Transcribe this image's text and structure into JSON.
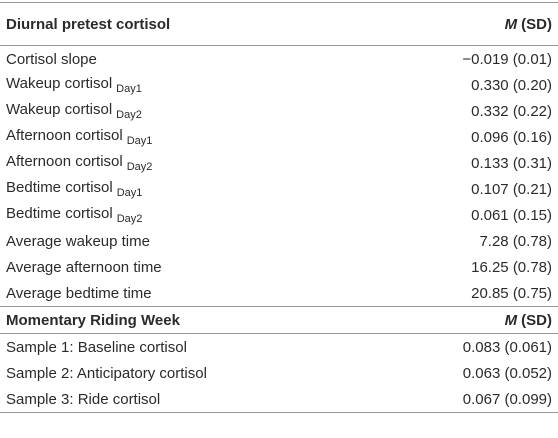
{
  "header": {
    "label": "Diurnal pretest cortisol",
    "stat": {
      "symbol": "M",
      "rest": "(SD)"
    }
  },
  "rows": [
    {
      "label": "Cortisol slope",
      "value": "−0.019 (0.01)"
    },
    {
      "label": "Wakeup cortisol",
      "sub": "Day1",
      "value": "0.330 (0.20)"
    },
    {
      "label": "Wakeup cortisol",
      "sub": "Day2",
      "value": "0.332 (0.22)"
    },
    {
      "label": "Afternoon cortisol",
      "sub": "Day1",
      "value": "0.096 (0.16)"
    },
    {
      "label": "Afternoon cortisol",
      "sub": "Day2",
      "value": "0.133 (0.31)"
    },
    {
      "label": "Bedtime cortisol",
      "sub": "Day1",
      "value": "0.107 (0.21)"
    },
    {
      "label": "Bedtime cortisol",
      "sub": "Day2",
      "value": "0.061 (0.15)"
    },
    {
      "label": "Average wakeup time",
      "value": "7.28 (0.78)"
    },
    {
      "label": "Average afternoon time",
      "value": "16.25 (0.78)"
    },
    {
      "label": "Average bedtime time",
      "value": "20.85 (0.75)"
    }
  ],
  "section": {
    "label": "Momentary Riding Week",
    "stat": {
      "symbol": "M",
      "rest": "(SD)"
    }
  },
  "section_rows": [
    {
      "label": "Sample 1: Baseline cortisol",
      "value": "0.083 (0.061)"
    },
    {
      "label": "Sample 2: Anticipatory cortisol",
      "value": "0.063 (0.052)"
    },
    {
      "label": "Sample 3: Ride cortisol",
      "value": "0.067 (0.099)"
    }
  ]
}
